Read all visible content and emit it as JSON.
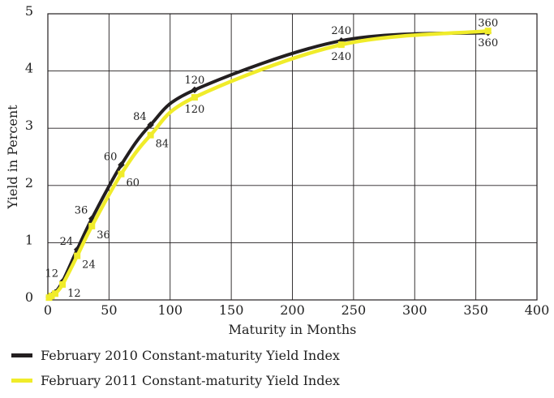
{
  "chart_data": {
    "type": "line",
    "xlabel": "Maturity in Months",
    "ylabel": "Yield in Percent",
    "xlim": [
      0,
      400
    ],
    "ylim": [
      0,
      5
    ],
    "x_ticks": [
      0,
      50,
      100,
      150,
      200,
      250,
      300,
      350,
      400
    ],
    "y_ticks": [
      0,
      1,
      2,
      3,
      4,
      5
    ],
    "grid": true,
    "legend_position": "bottom",
    "series": [
      {
        "name": "February 2010 Constant-maturity Yield Index",
        "color": "#231f20",
        "x": [
          1,
          3,
          6,
          12,
          24,
          36,
          60,
          84,
          120,
          240,
          360
        ],
        "y": [
          0.05,
          0.08,
          0.13,
          0.32,
          0.88,
          1.42,
          2.36,
          3.06,
          3.67,
          4.53,
          4.67
        ],
        "labels": [
          "",
          "",
          "",
          "12",
          "24",
          "36",
          "60",
          "84",
          "120",
          "240",
          "360"
        ]
      },
      {
        "name": "February 2011 Constant-maturity Yield Index",
        "color": "#f0ec2a",
        "x": [
          1,
          3,
          6,
          12,
          24,
          36,
          60,
          84,
          120,
          240,
          360
        ],
        "y": [
          0.04,
          0.07,
          0.11,
          0.27,
          0.77,
          1.29,
          2.2,
          2.88,
          3.54,
          4.46,
          4.7
        ],
        "labels": [
          "",
          "",
          "",
          "12",
          "24",
          "36",
          "60",
          "84",
          "120",
          "240",
          "360"
        ]
      }
    ]
  }
}
